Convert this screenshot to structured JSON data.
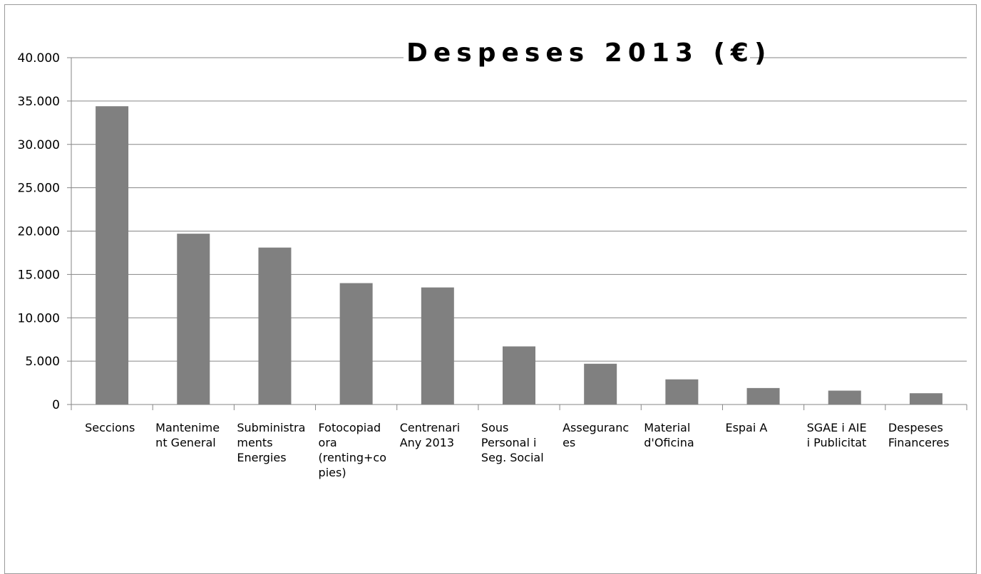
{
  "chart_data": {
    "type": "bar",
    "title": "Despeses 2013 (€)",
    "categories": [
      "Seccions",
      "Manteniment General",
      "Subministraments Energies",
      "Fotocopiadora (renting+copies)",
      "Centrenari Any 2013",
      "Sous Personal i Seg. Social",
      "Assegurances",
      "Material d'Oficina",
      "Espai A",
      "SGAE i AIE i Publicitat",
      "Despeses Financeres"
    ],
    "category_lines": [
      [
        "Seccions"
      ],
      [
        "Mantenime",
        "nt General"
      ],
      [
        "Subministra",
        "ments",
        "Energies"
      ],
      [
        "Fotocopiad",
        "ora",
        "(renting+co",
        "pies)"
      ],
      [
        "Centrenari",
        "Any 2013"
      ],
      [
        "Sous",
        "Personal i",
        "Seg. Social"
      ],
      [
        "Asseguranc",
        "es"
      ],
      [
        "Material",
        "d'Oficina"
      ],
      [
        "Espai A"
      ],
      [
        "SGAE i AIE",
        "i Publicitat"
      ],
      [
        "Despeses",
        "Financeres"
      ]
    ],
    "values": [
      34400,
      19700,
      18100,
      14000,
      13500,
      6700,
      4700,
      2900,
      1900,
      1600,
      1300
    ],
    "ylim": [
      0,
      40000
    ],
    "yticks": [
      0,
      5000,
      10000,
      15000,
      20000,
      25000,
      30000,
      35000,
      40000
    ],
    "ytick_labels": [
      "0",
      "5.000",
      "10.000",
      "15.000",
      "20.000",
      "25.000",
      "30.000",
      "35.000",
      "40.000"
    ],
    "xlabel": "",
    "ylabel": "",
    "grid": true,
    "legend": "none",
    "colors": {
      "bar": "#808080",
      "grid": "#868686",
      "axis": "#868686"
    }
  }
}
